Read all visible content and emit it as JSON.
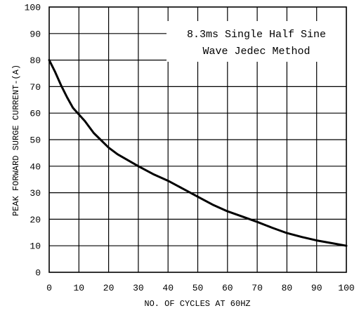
{
  "chart_data": {
    "type": "line",
    "title": "",
    "xlabel": "NO. OF CYCLES AT 60HZ",
    "ylabel": "PEAK FORWARD SURGE CURRENT-(A)",
    "xlim": [
      0,
      100
    ],
    "ylim": [
      0,
      100
    ],
    "xticks": [
      0,
      10,
      20,
      30,
      40,
      50,
      60,
      70,
      80,
      90,
      100
    ],
    "yticks": [
      0,
      10,
      20,
      30,
      40,
      50,
      60,
      70,
      80,
      90,
      100
    ],
    "grid": true,
    "annotation": {
      "lines": [
        "8.3ms Single Half Sine",
        "Wave Jedec Method"
      ],
      "placement": "top-right"
    },
    "series": [
      {
        "x": [
          0,
          2,
          4,
          6,
          8,
          10,
          12,
          15,
          20,
          23,
          30,
          35,
          40,
          45,
          50,
          55,
          60,
          65,
          70,
          75,
          80,
          85,
          90,
          95,
          100
        ],
        "y": [
          80,
          75.5,
          70.5,
          66,
          62,
          59.5,
          57,
          52.5,
          47,
          44.5,
          40,
          37,
          34.5,
          31.5,
          28.5,
          25.5,
          23,
          21,
          19,
          16.8,
          14.8,
          13.3,
          12,
          11,
          10
        ],
        "color": "#000000"
      }
    ]
  }
}
